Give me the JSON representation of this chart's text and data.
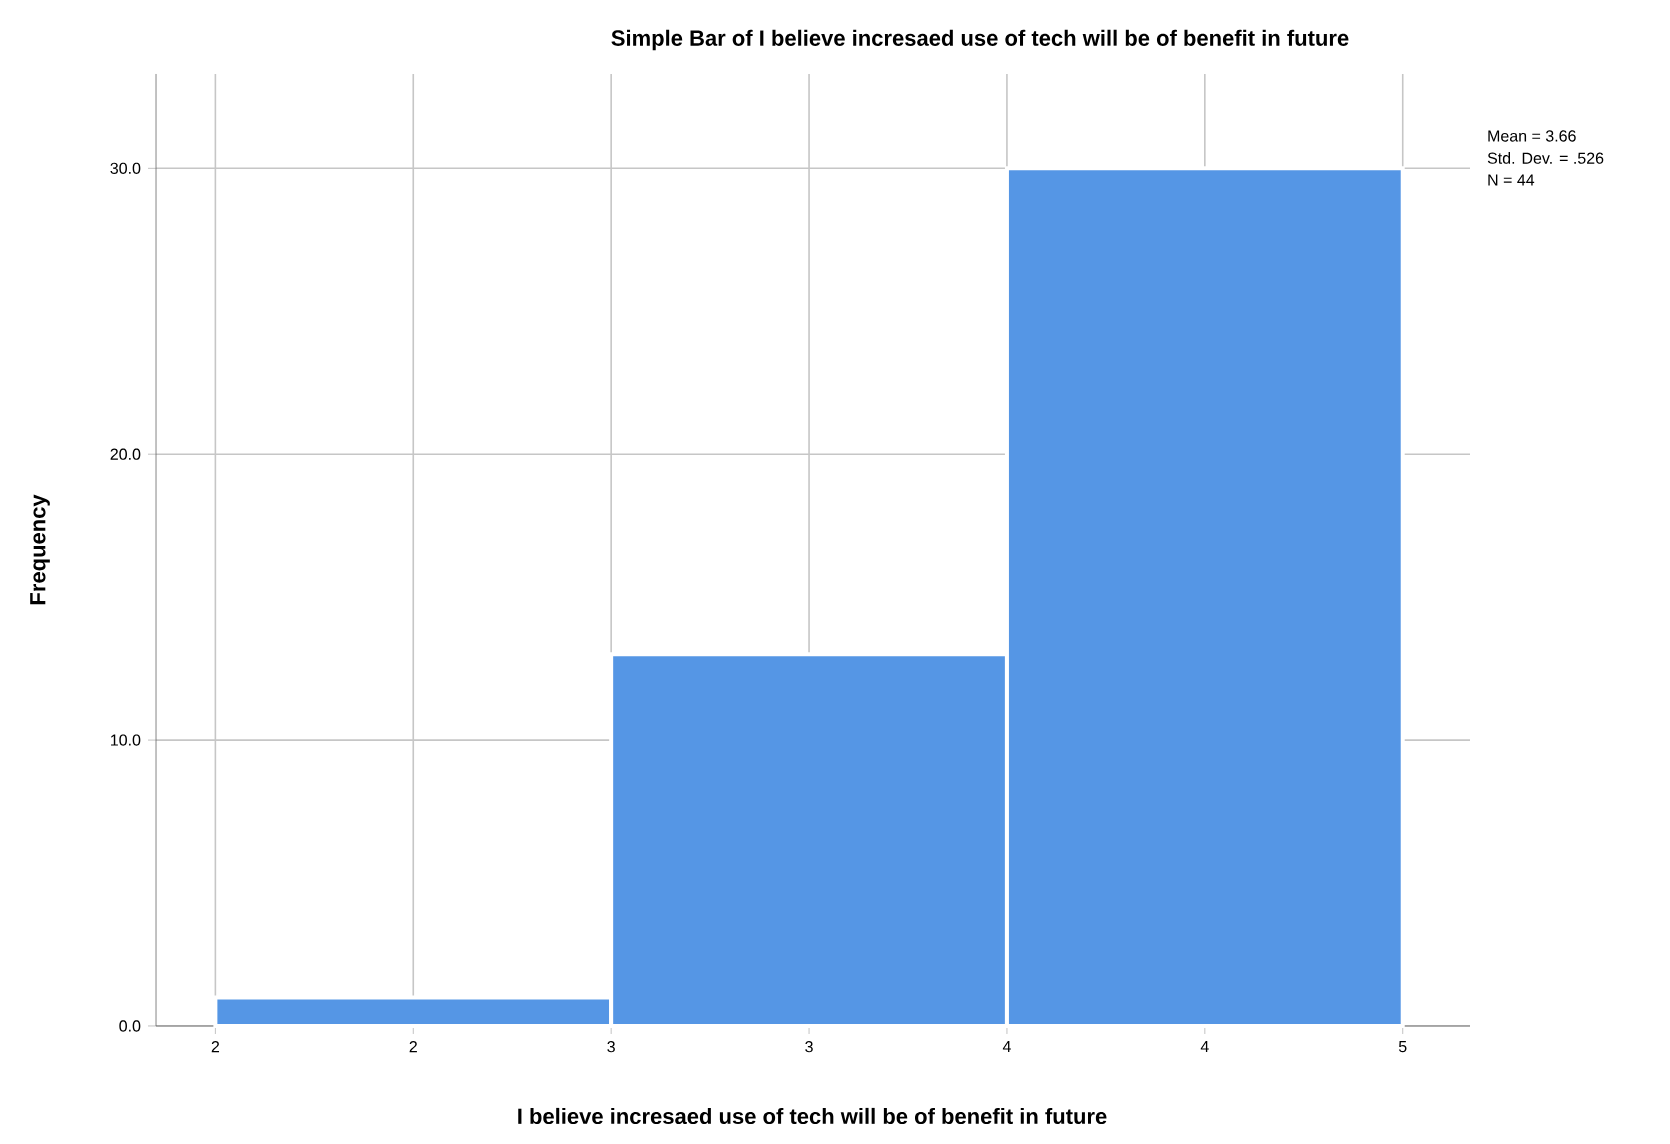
{
  "chart_data": {
    "type": "histogram",
    "title": "Simple Bar of I believe incresaed use of tech will be of benefit in future",
    "xlabel": "I believe incresaed use of tech will be of benefit in future",
    "ylabel": "Frequency",
    "bins": [
      2,
      3,
      4,
      5
    ],
    "values": [
      1,
      13,
      30
    ],
    "color": "#5596e5",
    "xlim": [
      1.85,
      5.17
    ],
    "ylim": [
      0,
      33.3
    ],
    "xticks": [
      {
        "value": 2,
        "label": "2"
      },
      {
        "value": 2.5,
        "label": "2"
      },
      {
        "value": 3,
        "label": "3"
      },
      {
        "value": 3.5,
        "label": "3"
      },
      {
        "value": 4,
        "label": "4"
      },
      {
        "value": 4.5,
        "label": "4"
      },
      {
        "value": 5,
        "label": "5"
      }
    ],
    "yticks": [
      {
        "value": 0,
        "label": "0.0"
      },
      {
        "value": 10,
        "label": "10.0"
      },
      {
        "value": 20,
        "label": "20.0"
      },
      {
        "value": 30,
        "label": "30.0"
      }
    ],
    "grid": true,
    "annotations": [
      "Mean = 3.66",
      "Std. Dev. = .526",
      "N = 44"
    ]
  }
}
